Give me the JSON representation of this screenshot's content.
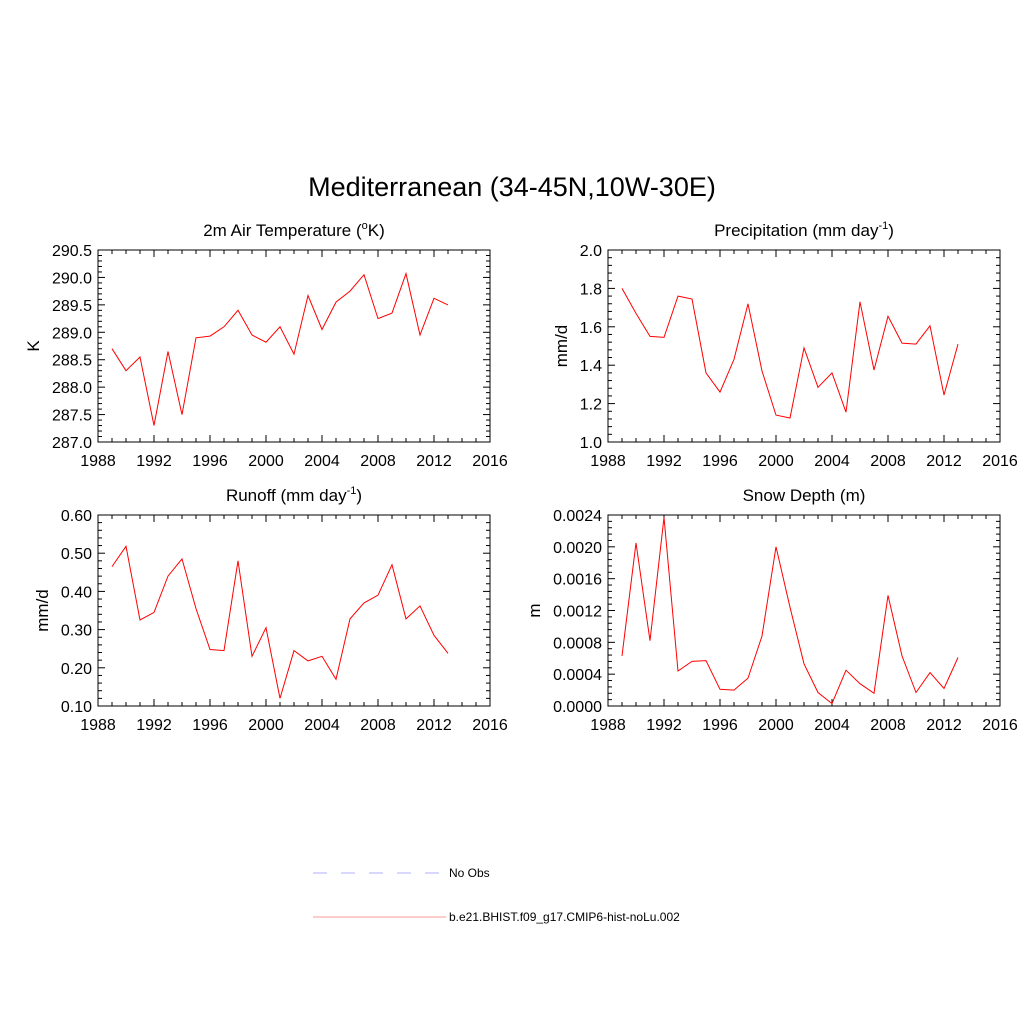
{
  "title": "Mediterranean (34-45N,10W-30E)",
  "colors": {
    "model": "#ff0000",
    "obs": "#b0b0ff"
  },
  "legend": {
    "items": [
      {
        "label": "No Obs",
        "style": "dashed",
        "color": "#b0b0ff"
      },
      {
        "label": "b.e21.BHIST.f09_g17.CMIP6-hist-noLu.002",
        "style": "solid",
        "color": "#ff9a9a"
      }
    ]
  },
  "chart_data": [
    {
      "type": "line",
      "title": "2m Air Temperature (",
      "title_sup": "o",
      "title_after": "K)",
      "xlabel": "",
      "ylabel": "K",
      "xlim": [
        1988,
        2016
      ],
      "xticks": [
        "1988",
        "1992",
        "1996",
        "2000",
        "2004",
        "2008",
        "2012",
        "2016"
      ],
      "ylim": [
        287.0,
        290.5
      ],
      "yticks": [
        "287.0",
        "287.5",
        "288.0",
        "288.5",
        "289.0",
        "289.5",
        "290.0",
        "290.5"
      ],
      "series": [
        {
          "x": [
            1989,
            1990,
            1991,
            1992,
            1993,
            1994,
            1995,
            1996,
            1997,
            1998,
            1999,
            2000,
            2001,
            2002,
            2003,
            2004,
            2005,
            2006,
            2007,
            2008,
            2009,
            2010,
            2011,
            2012,
            2013
          ],
          "values": [
            288.7,
            288.3,
            288.55,
            287.3,
            288.65,
            287.5,
            288.9,
            288.93,
            289.1,
            289.4,
            288.95,
            288.82,
            289.1,
            288.6,
            289.67,
            289.05,
            289.55,
            289.75,
            290.05,
            289.25,
            289.35,
            290.07,
            288.95,
            289.62,
            289.5
          ]
        }
      ]
    },
    {
      "type": "line",
      "title": "Precipitation (mm day",
      "title_sup": "-1",
      "title_after": ")",
      "xlabel": "",
      "ylabel": "mm/d",
      "xlim": [
        1988,
        2016
      ],
      "xticks": [
        "1988",
        "1992",
        "1996",
        "2000",
        "2004",
        "2008",
        "2012",
        "2016"
      ],
      "ylim": [
        1.0,
        2.0
      ],
      "yticks": [
        "1.0",
        "1.2",
        "1.4",
        "1.6",
        "1.8",
        "2.0"
      ],
      "series": [
        {
          "x": [
            1989,
            1990,
            1991,
            1992,
            1993,
            1994,
            1995,
            1996,
            1997,
            1998,
            1999,
            2000,
            2001,
            2002,
            2003,
            2004,
            2005,
            2006,
            2007,
            2008,
            2009,
            2010,
            2011,
            2012,
            2013
          ],
          "values": [
            1.8,
            1.67,
            1.55,
            1.545,
            1.76,
            1.745,
            1.36,
            1.26,
            1.43,
            1.72,
            1.37,
            1.14,
            1.125,
            1.49,
            1.285,
            1.36,
            1.155,
            1.73,
            1.375,
            1.655,
            1.515,
            1.51,
            1.605,
            1.245,
            1.51
          ]
        }
      ]
    },
    {
      "type": "line",
      "title": "Runoff (mm day",
      "title_sup": "-1",
      "title_after": ")",
      "xlabel": "",
      "ylabel": "mm/d",
      "xlim": [
        1988,
        2016
      ],
      "xticks": [
        "1988",
        "1992",
        "1996",
        "2000",
        "2004",
        "2008",
        "2012",
        "2016"
      ],
      "ylim": [
        0.1,
        0.6
      ],
      "yticks": [
        "0.10",
        "0.20",
        "0.30",
        "0.40",
        "0.50",
        "0.60"
      ],
      "series": [
        {
          "x": [
            1989,
            1990,
            1991,
            1992,
            1993,
            1994,
            1995,
            1996,
            1997,
            1998,
            1999,
            2000,
            2001,
            2002,
            2003,
            2004,
            2005,
            2006,
            2007,
            2008,
            2009,
            2010,
            2011,
            2012,
            2013
          ],
          "values": [
            0.465,
            0.518,
            0.325,
            0.345,
            0.44,
            0.485,
            0.355,
            0.248,
            0.245,
            0.48,
            0.23,
            0.305,
            0.12,
            0.245,
            0.218,
            0.23,
            0.17,
            0.328,
            0.37,
            0.39,
            0.47,
            0.328,
            0.362,
            0.285,
            0.238
          ]
        }
      ]
    },
    {
      "type": "line",
      "title": "Snow Depth (m)",
      "title_sup": "",
      "title_after": "",
      "xlabel": "",
      "ylabel": "m",
      "xlim": [
        1988,
        2016
      ],
      "xticks": [
        "1988",
        "1992",
        "1996",
        "2000",
        "2004",
        "2008",
        "2012",
        "2016"
      ],
      "ylim": [
        0.0,
        0.0024
      ],
      "yticks": [
        "0.0000",
        "0.0004",
        "0.0008",
        "0.0012",
        "0.0016",
        "0.0020",
        "0.0024"
      ],
      "series": [
        {
          "x": [
            1989,
            1990,
            1991,
            1992,
            1993,
            1994,
            1995,
            1996,
            1997,
            1998,
            1999,
            2000,
            2001,
            2002,
            2003,
            2004,
            2005,
            2006,
            2007,
            2008,
            2009,
            2010,
            2011,
            2012,
            2013
          ],
          "values": [
            0.00063,
            0.00205,
            0.00082,
            0.00237,
            0.00044,
            0.00056,
            0.00057,
            0.00021,
            0.0002,
            0.00035,
            0.00088,
            0.002,
            0.00124,
            0.00053,
            0.00017,
            3e-05,
            0.00045,
            0.00028,
            0.00016,
            0.00139,
            0.00063,
            0.00017,
            0.00042,
            0.00022,
            0.00061
          ]
        }
      ]
    }
  ]
}
